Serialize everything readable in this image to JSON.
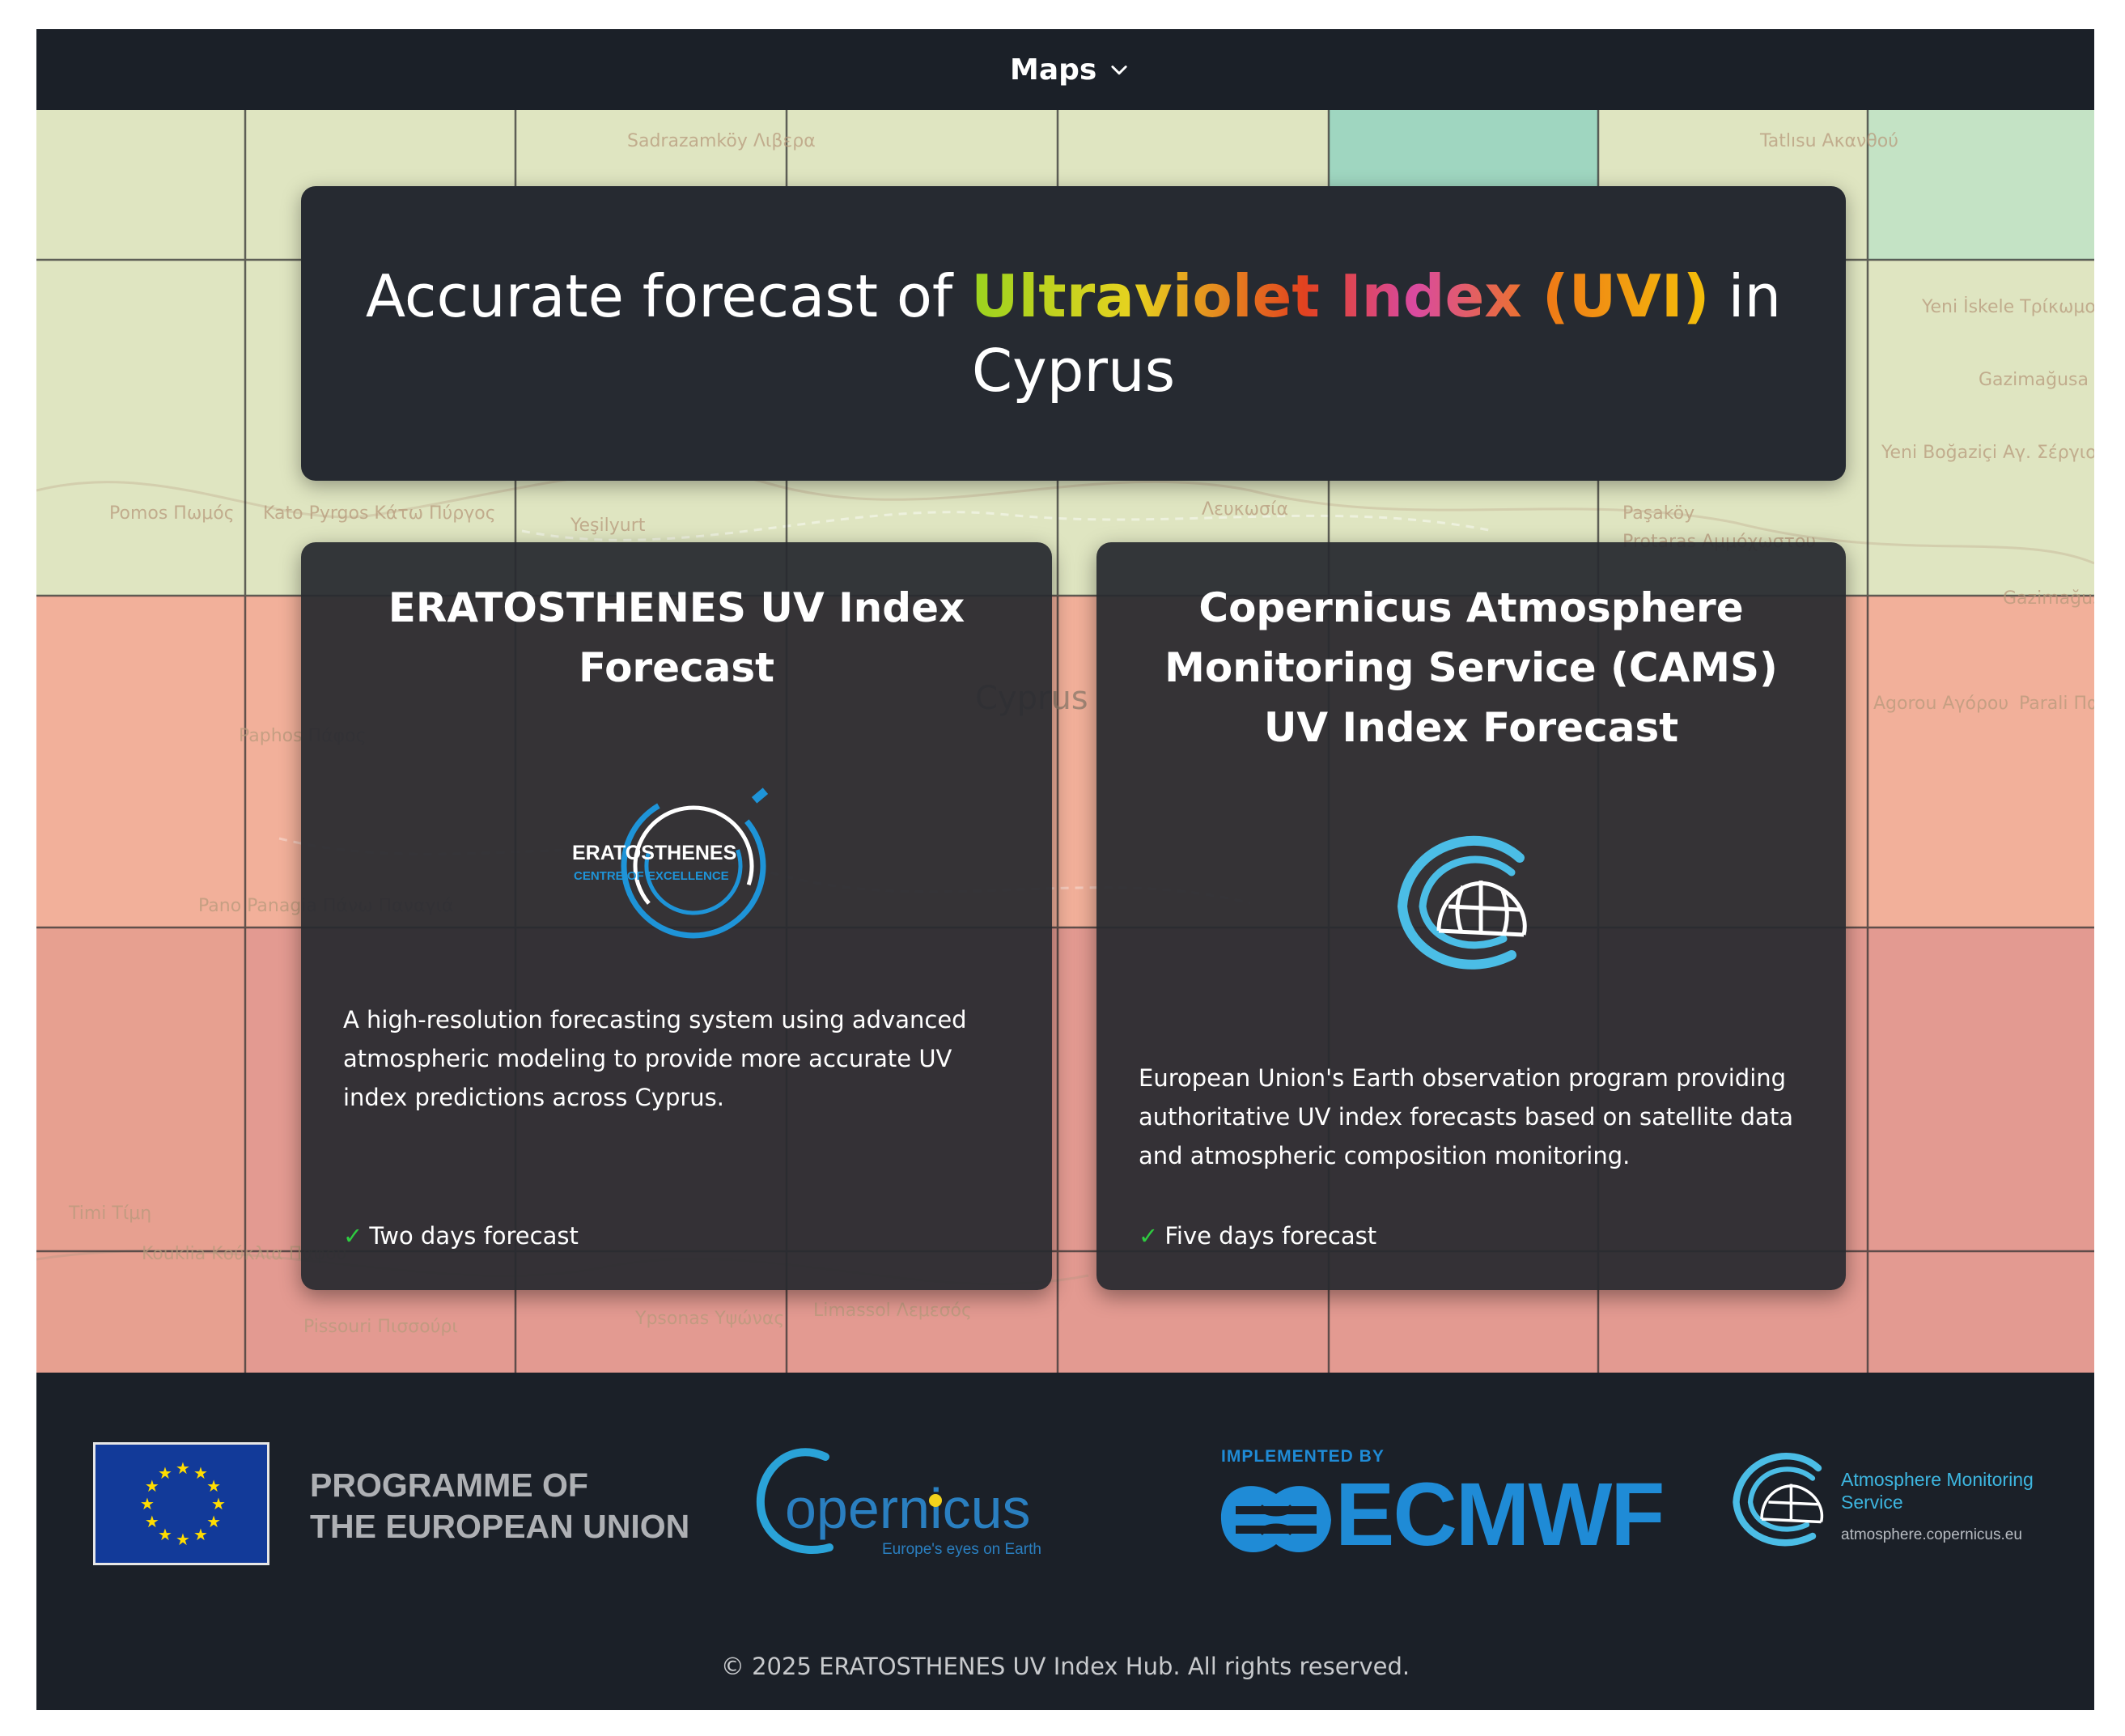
{
  "navbar": {
    "maps_label": "Maps",
    "chevron_icon": "chevron-down-icon"
  },
  "map_labels": [
    "Sadrazamköy Λιβερα",
    "Tatlısu Ακανθού",
    "Yeni İskele Τρίκωμο",
    "Gazimağusa Κόλπος Αμμοχώστου",
    "Yeni Boğaziçi Αγ. Σέργιος",
    "Pomos Πωμός",
    "Kato Pyrgos Κάτω Πύργος",
    "Yeşilyurt",
    "Λευκωσία",
    "Paşaköy",
    "Protaras Αμμόχωστου",
    "Gazimağusa Αμμόχωστος",
    "Cyprus",
    "Paphos Πάφος",
    "Pano Panagia Πάνω Παναγιά",
    "Agorou Αγόρου",
    "Parali Παραλι",
    "Timi Τίμη",
    "Kouklia Κούκλια Παφου",
    "Pissouri Πισσούρι",
    "Ypsonas Υψώνας",
    "Limassol Λεμεσός"
  ],
  "map_colors": {
    "band_green": "#dfe5c1",
    "band_teal": "#9fd6c0",
    "band_orange": "#f2b09a",
    "band_red": "#e39a91"
  },
  "hero": {
    "title_before": "Accurate forecast of ",
    "title_highlight": "Ultraviolet Index (UVI)",
    "title_after": " in Cyprus"
  },
  "cards": [
    {
      "title": "ERATOSTHENES UV Index Forecast",
      "logo_text_1": "ERATOSTHENES",
      "logo_text_2": "CENTRE OF EXCELLENCE",
      "description": "A high-resolution forecasting system using advanced atmospheric modeling to provide more accurate UV index predictions across Cyprus.",
      "feature_check": "✓",
      "feature": "Two days forecast"
    },
    {
      "title": "Copernicus Atmosphere Monitoring Service (CAMS) UV Index Forecast",
      "description": "European Union's Earth observation program providing authoritative UV index forecasts based on satellite data and atmospheric composition monitoring.",
      "feature_check": "✓",
      "feature": "Five days forecast"
    }
  ],
  "footer": {
    "eu_line1": "PROGRAMME OF",
    "eu_line2": "THE EUROPEAN UNION",
    "copernicus_name": "opernicus",
    "copernicus_tagline": "Europe's eyes on Earth",
    "implemented_by": "IMPLEMENTED BY",
    "ecmwf": "ECMWF",
    "ams_name": "Atmosphere Monitoring Service",
    "ams_url": "atmosphere.copernicus.eu",
    "copyright": "© 2025 ERATOSTHENES UV Index Hub. All rights reserved."
  },
  "colors": {
    "page_bg": "#1b2028",
    "card_bg": "#282a30",
    "accent_blue": "#1f8bd6",
    "check_green": "#2ecc40"
  }
}
